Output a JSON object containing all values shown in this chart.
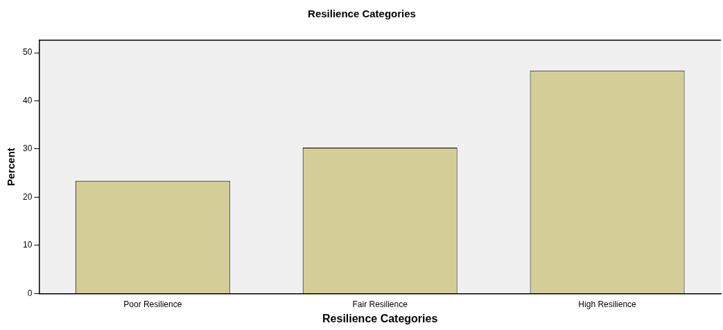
{
  "chart_data": {
    "type": "bar",
    "title": "Resilience Categories",
    "xlabel": "Resilience Categories",
    "ylabel": "Percent",
    "categories": [
      "Poor Resilience",
      "Fair Resilience",
      "High Resilience"
    ],
    "values": [
      23.4,
      30.3,
      46.3
    ],
    "color": "#d3cd98",
    "ylim": [
      0,
      52.6
    ],
    "yticks": [
      0,
      10,
      20,
      30,
      40,
      50
    ],
    "grid": false,
    "legend": false
  }
}
